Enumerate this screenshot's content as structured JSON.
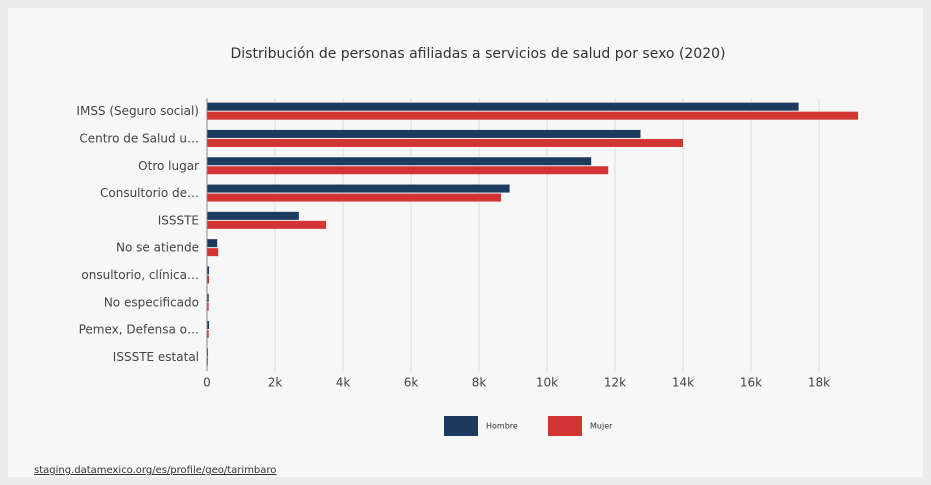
{
  "chart_data": {
    "type": "barh",
    "title": "Distribución de personas afiliadas a servicios de salud por sexo (2020)",
    "categories": [
      "IMSS (Seguro social)",
      "Centro de Salud u…",
      "Otro lugar",
      "Consultorio de…",
      "ISSSTE",
      "No se atiende",
      "onsultorio, clínica…",
      "No especificado",
      "Pemex, Defensa o…",
      "ISSSTE estatal"
    ],
    "series": [
      {
        "name": "Hombre",
        "color": "#1d3a5f",
        "values": [
          17400,
          12750,
          11300,
          8900,
          2700,
          300,
          60,
          50,
          60,
          30
        ]
      },
      {
        "name": "Mujer",
        "color": "#d33535",
        "values": [
          19150,
          14000,
          11800,
          8650,
          3500,
          330,
          60,
          50,
          50,
          30
        ]
      }
    ],
    "xlim": [
      0,
      19500
    ],
    "xticks": [
      0,
      {
        "value": 2000,
        "label": "2k"
      },
      {
        "value": 4000,
        "label": "4k"
      },
      {
        "value": 6000,
        "label": "6k"
      },
      {
        "value": 8000,
        "label": "8k"
      },
      {
        "value": 10000,
        "label": "10k"
      },
      {
        "value": 12000,
        "label": "12k"
      },
      {
        "value": 14000,
        "label": "14k"
      },
      {
        "value": 16000,
        "label": "16k"
      },
      {
        "value": 18000,
        "label": "18k"
      }
    ],
    "grid": true,
    "legend": "bottom",
    "source": "staging.datamexico.org/es/profile/geo/tarimbaro"
  }
}
